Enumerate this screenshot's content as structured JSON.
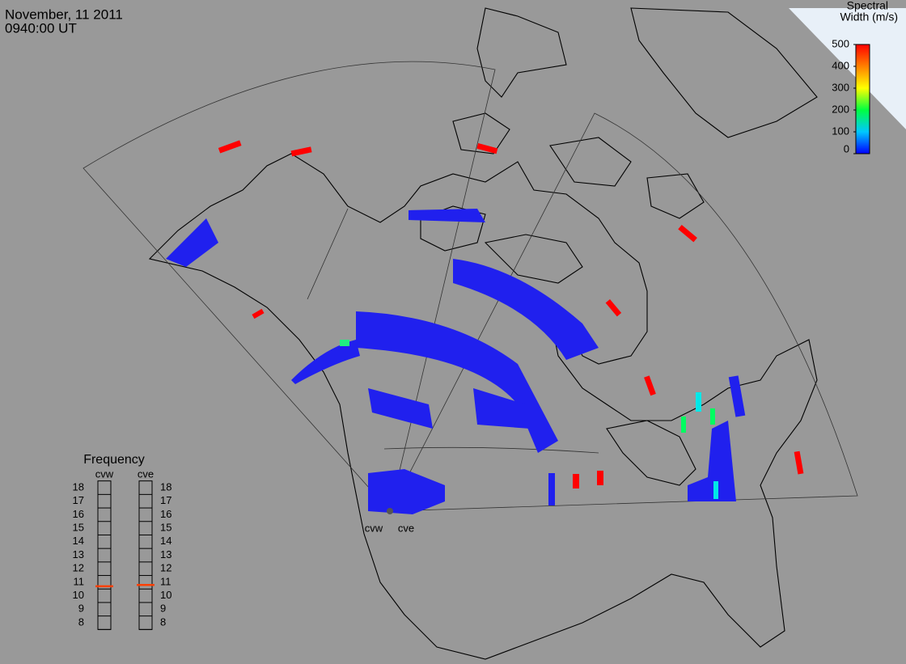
{
  "header": {
    "date": "November, 11 2011",
    "time": "0940:00 UT"
  },
  "colorbar": {
    "title": [
      "Spectral",
      "Width (m/s)"
    ],
    "lim": [
      0,
      500
    ],
    "ticks": [
      0,
      100,
      200,
      300,
      400,
      500
    ],
    "colors": [
      "#0000ff",
      "#00c8ff",
      "#00ff40",
      "#ffff00",
      "#ff8000",
      "#ff0000"
    ]
  },
  "frequency": {
    "title": "Frequency",
    "ticks": [
      8,
      9,
      10,
      11,
      12,
      13,
      14,
      15,
      16,
      17,
      18
    ],
    "marker_color": "#ff4000",
    "radars": [
      {
        "name": "cvw",
        "value": 10.7
      },
      {
        "name": "cve",
        "value": 10.8
      }
    ]
  },
  "radar_labels": [
    "cvw",
    "cve"
  ]
}
